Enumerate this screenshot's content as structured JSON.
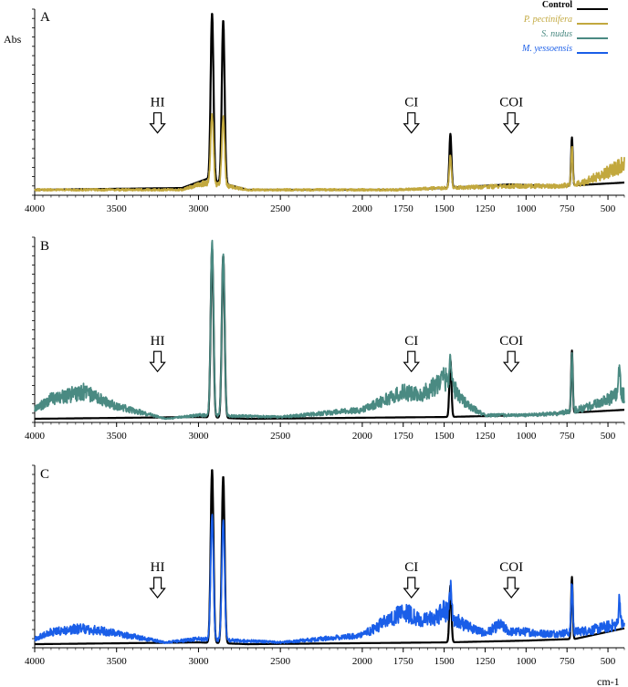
{
  "figure": {
    "ylabel": "Abs",
    "xunit": "cm-1"
  },
  "legend": [
    {
      "label": "Control",
      "color": "#000000",
      "style": "bold"
    },
    {
      "label": "P. pectinifera",
      "color": "#c2a83e",
      "style": "italic"
    },
    {
      "label": "S. nudus",
      "color": "#4a8a82",
      "style": "italic"
    },
    {
      "label": "M. yessoensis",
      "color": "#1a5ee8",
      "style": "italic"
    }
  ],
  "chart_data": [
    {
      "type": "line",
      "panel": "A",
      "xlim": [
        4000,
        400
      ],
      "x_reversed": true,
      "xticks": [
        4000,
        3500,
        3000,
        2500,
        2000,
        1750,
        1500,
        1250,
        1000,
        750,
        500
      ],
      "annotations": [
        {
          "label": "HI",
          "x": 3250,
          "arrow": "down"
        },
        {
          "label": "CI",
          "x": 1700,
          "arrow": "down"
        },
        {
          "label": "COI",
          "x": 1090,
          "arrow": "down"
        }
      ],
      "series": [
        {
          "name": "Control",
          "color": "#000000",
          "peaks": [
            [
              2917,
              1.0
            ],
            [
              2849,
              0.96
            ],
            [
              1462,
              0.33
            ],
            [
              720,
              0.31
            ]
          ],
          "baseline": [
            [
              4000,
              0.02
            ],
            [
              3100,
              0.03
            ],
            [
              2950,
              0.08
            ],
            [
              2700,
              0.02
            ],
            [
              1800,
              0.02
            ],
            [
              1500,
              0.03
            ],
            [
              1100,
              0.05
            ],
            [
              800,
              0.04
            ],
            [
              400,
              0.06
            ]
          ]
        },
        {
          "name": "P. pectinifera",
          "color": "#c2a83e",
          "peaks": [
            [
              2917,
              0.44
            ],
            [
              2849,
              0.42
            ],
            [
              1462,
              0.21
            ],
            [
              720,
              0.26
            ]
          ],
          "baseline": [
            [
              4000,
              0.02
            ],
            [
              3100,
              0.02
            ],
            [
              2950,
              0.06
            ],
            [
              2700,
              0.02
            ],
            [
              1800,
              0.02
            ],
            [
              1500,
              0.03
            ],
            [
              1100,
              0.04
            ],
            [
              800,
              0.04
            ],
            [
              650,
              0.06
            ],
            [
              400,
              0.16
            ]
          ]
        }
      ]
    },
    {
      "type": "line",
      "panel": "B",
      "xlim": [
        4000,
        400
      ],
      "x_reversed": true,
      "xticks": [
        4000,
        3500,
        3000,
        2500,
        2000,
        1750,
        1500,
        1250,
        1000,
        750,
        500
      ],
      "annotations": [
        {
          "label": "HI",
          "x": 3250,
          "arrow": "down"
        },
        {
          "label": "CI",
          "x": 1700,
          "arrow": "down"
        },
        {
          "label": "COI",
          "x": 1090,
          "arrow": "down"
        }
      ],
      "series": [
        {
          "name": "Control",
          "color": "#000000",
          "peaks": [
            [
              2917,
              0.96
            ],
            [
              2849,
              0.92
            ],
            [
              1462,
              0.34
            ],
            [
              720,
              0.39
            ]
          ],
          "baseline": [
            [
              4000,
              0.01
            ],
            [
              3000,
              0.02
            ],
            [
              2700,
              0.01
            ],
            [
              1500,
              0.02
            ],
            [
              1000,
              0.03
            ],
            [
              400,
              0.06
            ]
          ]
        },
        {
          "name": "S. nudus",
          "color": "#4a8a82",
          "peaks": [
            [
              2917,
              1.0
            ],
            [
              2849,
              0.93
            ],
            [
              1462,
              0.36
            ],
            [
              720,
              0.37
            ],
            [
              430,
              0.3
            ]
          ],
          "baseline": [
            [
              4000,
              0.06
            ],
            [
              3900,
              0.12
            ],
            [
              3700,
              0.16
            ],
            [
              3500,
              0.08
            ],
            [
              3200,
              0.01
            ],
            [
              3000,
              0.03
            ],
            [
              2500,
              0.02
            ],
            [
              2000,
              0.06
            ],
            [
              1750,
              0.16
            ],
            [
              1650,
              0.14
            ],
            [
              1550,
              0.2
            ],
            [
              1500,
              0.24
            ],
            [
              1350,
              0.08
            ],
            [
              1250,
              0.03
            ],
            [
              1000,
              0.03
            ],
            [
              800,
              0.04
            ],
            [
              600,
              0.08
            ],
            [
              450,
              0.14
            ]
          ]
        }
      ]
    },
    {
      "type": "line",
      "panel": "C",
      "xlim": [
        4000,
        400
      ],
      "x_reversed": true,
      "xticks": [
        4000,
        3500,
        3000,
        2500,
        2000,
        1750,
        1500,
        1250,
        1000,
        750,
        500
      ],
      "annotations": [
        {
          "label": "HI",
          "x": 3250,
          "arrow": "down"
        },
        {
          "label": "CI",
          "x": 1700,
          "arrow": "down"
        },
        {
          "label": "COI",
          "x": 1090,
          "arrow": "down"
        }
      ],
      "series": [
        {
          "name": "Control",
          "color": "#000000",
          "peaks": [
            [
              2917,
              1.0
            ],
            [
              2849,
              0.96
            ],
            [
              1462,
              0.34
            ],
            [
              720,
              0.39
            ]
          ],
          "baseline": [
            [
              4000,
              0.01
            ],
            [
              3000,
              0.02
            ],
            [
              2700,
              0.01
            ],
            [
              1500,
              0.02
            ],
            [
              1000,
              0.03
            ],
            [
              700,
              0.04
            ],
            [
              400,
              0.1
            ]
          ]
        },
        {
          "name": "M. yessoensis",
          "color": "#1a5ee8",
          "peaks": [
            [
              2917,
              0.74
            ],
            [
              2849,
              0.71
            ],
            [
              1462,
              0.34
            ],
            [
              720,
              0.36
            ],
            [
              430,
              0.28
            ]
          ],
          "baseline": [
            [
              4000,
              0.04
            ],
            [
              3900,
              0.08
            ],
            [
              3700,
              0.1
            ],
            [
              3500,
              0.07
            ],
            [
              3200,
              0.02
            ],
            [
              3000,
              0.04
            ],
            [
              2500,
              0.02
            ],
            [
              2000,
              0.06
            ],
            [
              1740,
              0.2
            ],
            [
              1650,
              0.14
            ],
            [
              1550,
              0.16
            ],
            [
              1500,
              0.2
            ],
            [
              1400,
              0.13
            ],
            [
              1300,
              0.09
            ],
            [
              1250,
              0.07
            ],
            [
              1160,
              0.12
            ],
            [
              1100,
              0.08
            ],
            [
              1000,
              0.08
            ],
            [
              900,
              0.07
            ],
            [
              800,
              0.07
            ],
            [
              600,
              0.09
            ],
            [
              450,
              0.12
            ]
          ]
        }
      ]
    }
  ]
}
